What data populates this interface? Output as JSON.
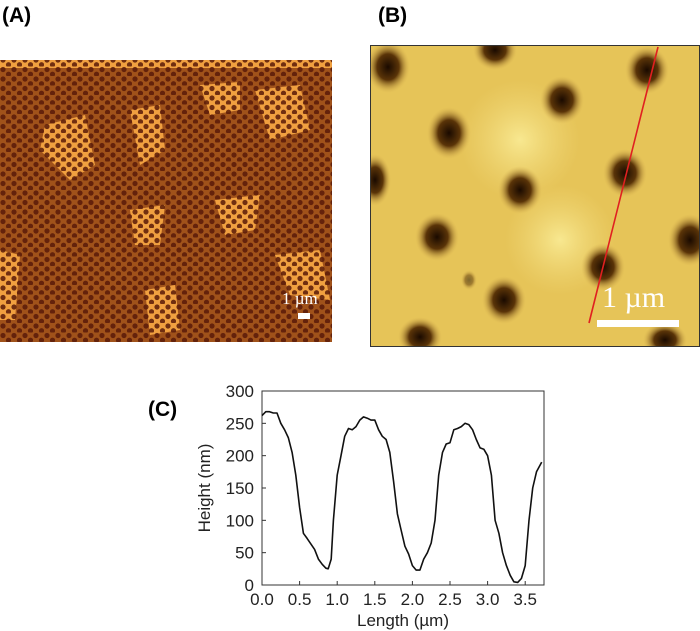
{
  "panels": {
    "a": {
      "label": "(A)",
      "scale_bar": "1 µm"
    },
    "b": {
      "label": "(B)",
      "scale_bar": "1 µm"
    },
    "c": {
      "label": "(C)"
    }
  },
  "colors": {
    "afm_a_base": "#a0521a",
    "afm_a_light": "#f0a040",
    "afm_a_dot": "#5a1a08",
    "afm_b_base": "#e8c65a",
    "afm_b_hole": "#2a1200",
    "profile_line": "#e02020"
  },
  "chart_data": {
    "type": "line",
    "xlabel": "Length (µm)",
    "ylabel": "Height (nm)",
    "xlim": [
      0,
      3.75
    ],
    "ylim": [
      0,
      300
    ],
    "xticks": [
      "0.0",
      "0.5",
      "1.0",
      "1.5",
      "2.0",
      "2.5",
      "3.0",
      "3.5"
    ],
    "yticks": [
      "0",
      "50",
      "100",
      "150",
      "200",
      "250",
      "300"
    ],
    "grid": false,
    "x": [
      0,
      0.05,
      0.1,
      0.15,
      0.2,
      0.25,
      0.3,
      0.35,
      0.4,
      0.45,
      0.5,
      0.55,
      0.6,
      0.7,
      0.75,
      0.8,
      0.85,
      0.88,
      0.92,
      0.95,
      1.0,
      1.05,
      1.1,
      1.15,
      1.2,
      1.25,
      1.3,
      1.35,
      1.4,
      1.45,
      1.5,
      1.55,
      1.6,
      1.65,
      1.7,
      1.75,
      1.8,
      1.85,
      1.9,
      1.95,
      2.0,
      2.05,
      2.1,
      2.15,
      2.2,
      2.25,
      2.3,
      2.35,
      2.4,
      2.45,
      2.5,
      2.55,
      2.6,
      2.65,
      2.7,
      2.75,
      2.8,
      2.85,
      2.9,
      2.95,
      3.0,
      3.05,
      3.1,
      3.15,
      3.2,
      3.25,
      3.3,
      3.35,
      3.4,
      3.45,
      3.5,
      3.55,
      3.6,
      3.65,
      3.72
    ],
    "y": [
      262,
      268,
      268,
      266,
      266,
      250,
      240,
      228,
      205,
      170,
      120,
      80,
      72,
      55,
      40,
      32,
      26,
      25,
      40,
      100,
      170,
      200,
      230,
      242,
      240,
      245,
      255,
      260,
      258,
      255,
      255,
      240,
      230,
      225,
      205,
      160,
      110,
      85,
      60,
      48,
      30,
      23,
      23,
      40,
      50,
      65,
      100,
      170,
      205,
      218,
      220,
      240,
      242,
      245,
      250,
      248,
      240,
      225,
      212,
      210,
      200,
      170,
      100,
      80,
      50,
      30,
      15,
      5,
      4,
      10,
      30,
      100,
      150,
      175,
      190
    ]
  }
}
